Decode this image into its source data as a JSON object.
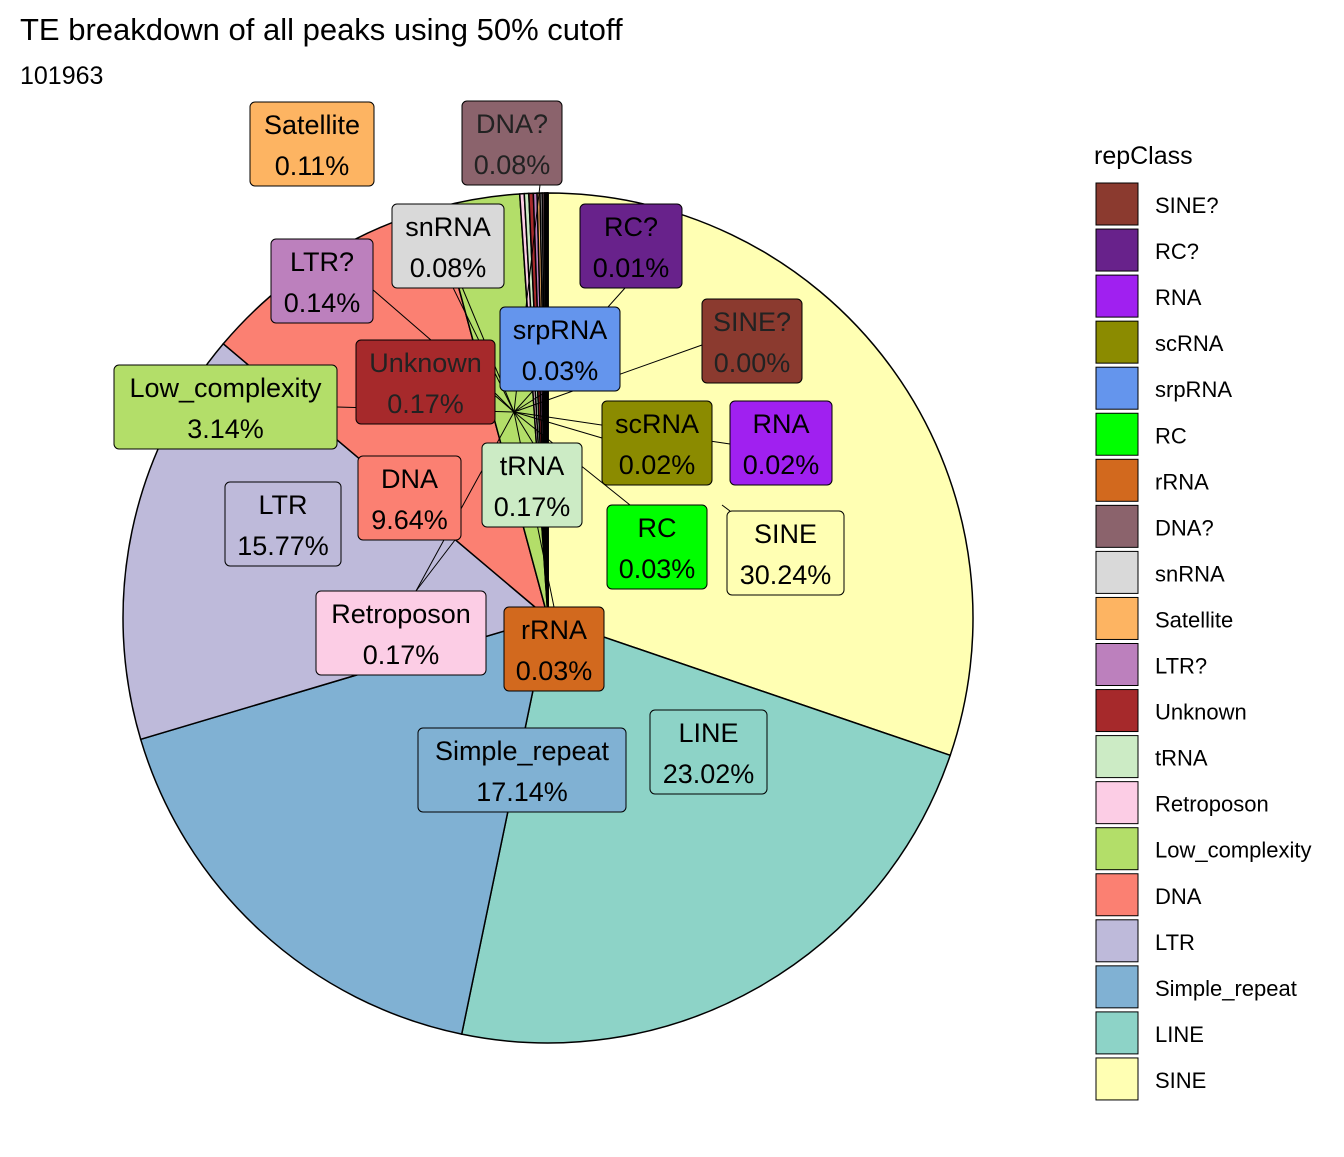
{
  "title": "TE breakdown of all peaks using 50% cutoff",
  "subtitle": "101963",
  "legend_title": "repClass",
  "chart_data": {
    "type": "pie",
    "legend_placement": "right",
    "slices": [
      {
        "label": "SINE",
        "value": 30.24,
        "display": "30.24%",
        "color": "#FFFFB3"
      },
      {
        "label": "LINE",
        "value": 23.02,
        "display": "23.02%",
        "color": "#8DD3C7"
      },
      {
        "label": "Simple_repeat",
        "value": 17.14,
        "display": "17.14%",
        "color": "#80B1D3"
      },
      {
        "label": "LTR",
        "value": 15.77,
        "display": "15.77%",
        "color": "#BEBADA"
      },
      {
        "label": "DNA",
        "value": 9.64,
        "display": "9.64%",
        "color": "#FB8072"
      },
      {
        "label": "Low_complexity",
        "value": 3.14,
        "display": "3.14%",
        "color": "#B3DE69"
      },
      {
        "label": "Retroposon",
        "value": 0.17,
        "display": "0.17%",
        "color": "#FCCDE5"
      },
      {
        "label": "tRNA",
        "value": 0.17,
        "display": "0.17%",
        "color": "#CCEBC5"
      },
      {
        "label": "Unknown",
        "value": 0.17,
        "display": "0.17%",
        "color": "#A6292B"
      },
      {
        "label": "LTR?",
        "value": 0.14,
        "display": "0.14%",
        "color": "#BC80BD"
      },
      {
        "label": "Satellite",
        "value": 0.11,
        "display": "0.11%",
        "color": "#FDB462"
      },
      {
        "label": "snRNA",
        "value": 0.08,
        "display": "0.08%",
        "color": "#D9D9D9"
      },
      {
        "label": "DNA?",
        "value": 0.08,
        "display": "0.08%",
        "color": "#8B636C"
      },
      {
        "label": "rRNA",
        "value": 0.03,
        "display": "0.03%",
        "color": "#D2691E"
      },
      {
        "label": "RC",
        "value": 0.03,
        "display": "0.03%",
        "color": "#00FF00"
      },
      {
        "label": "srpRNA",
        "value": 0.03,
        "display": "0.03%",
        "color": "#6495ED"
      },
      {
        "label": "scRNA",
        "value": 0.02,
        "display": "0.02%",
        "color": "#8B8B00"
      },
      {
        "label": "RNA",
        "value": 0.02,
        "display": "0.02%",
        "color": "#A020F0"
      },
      {
        "label": "RC?",
        "value": 0.01,
        "display": "0.01%",
        "color": "#68228B"
      },
      {
        "label": "SINE?",
        "value": 0.0,
        "display": "0.00%",
        "color": "#8B3A2F"
      }
    ],
    "legend_order": [
      "SINE?",
      "RC?",
      "RNA",
      "scRNA",
      "srpRNA",
      "RC",
      "rRNA",
      "DNA?",
      "snRNA",
      "Satellite",
      "LTR?",
      "Unknown",
      "tRNA",
      "Retroposon",
      "Low_complexity",
      "DNA",
      "LTR",
      "Simple_repeat",
      "LINE",
      "SINE"
    ],
    "dark_label_text": [
      "DNA?",
      "Unknown",
      "SINE?"
    ]
  }
}
